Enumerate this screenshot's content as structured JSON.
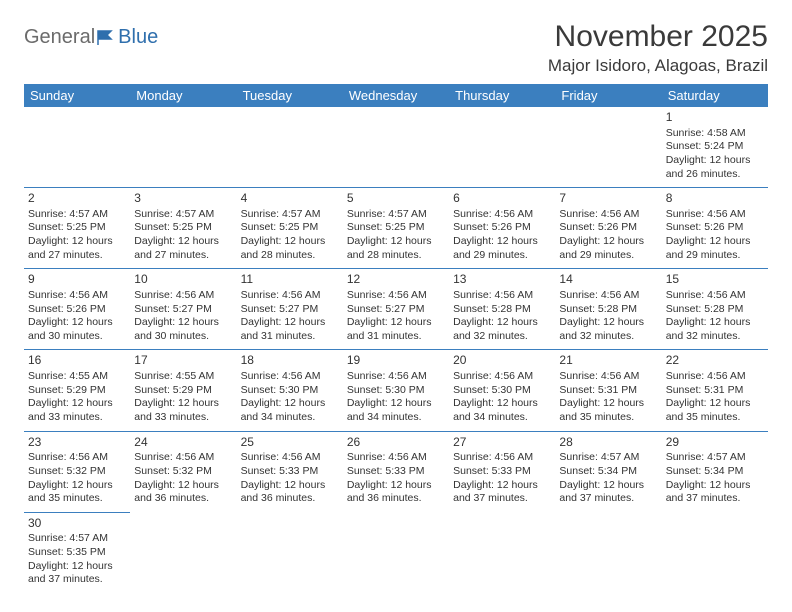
{
  "logo": {
    "text1": "General",
    "text2": "Blue"
  },
  "title": "November 2025",
  "location": "Major Isidoro, Alagoas, Brazil",
  "weekdays": [
    "Sunday",
    "Monday",
    "Tuesday",
    "Wednesday",
    "Thursday",
    "Friday",
    "Saturday"
  ],
  "colors": {
    "header_bg": "#3b7fbf",
    "header_text": "#ffffff",
    "cell_border": "#3b7fbf",
    "text": "#333333",
    "logo_general": "#6b6b6b",
    "logo_blue": "#2f6fad"
  },
  "weeks": [
    [
      null,
      null,
      null,
      null,
      null,
      null,
      {
        "day": "1",
        "sunrise": "Sunrise: 4:58 AM",
        "sunset": "Sunset: 5:24 PM",
        "daylight1": "Daylight: 12 hours",
        "daylight2": "and 26 minutes."
      }
    ],
    [
      {
        "day": "2",
        "sunrise": "Sunrise: 4:57 AM",
        "sunset": "Sunset: 5:25 PM",
        "daylight1": "Daylight: 12 hours",
        "daylight2": "and 27 minutes."
      },
      {
        "day": "3",
        "sunrise": "Sunrise: 4:57 AM",
        "sunset": "Sunset: 5:25 PM",
        "daylight1": "Daylight: 12 hours",
        "daylight2": "and 27 minutes."
      },
      {
        "day": "4",
        "sunrise": "Sunrise: 4:57 AM",
        "sunset": "Sunset: 5:25 PM",
        "daylight1": "Daylight: 12 hours",
        "daylight2": "and 28 minutes."
      },
      {
        "day": "5",
        "sunrise": "Sunrise: 4:57 AM",
        "sunset": "Sunset: 5:25 PM",
        "daylight1": "Daylight: 12 hours",
        "daylight2": "and 28 minutes."
      },
      {
        "day": "6",
        "sunrise": "Sunrise: 4:56 AM",
        "sunset": "Sunset: 5:26 PM",
        "daylight1": "Daylight: 12 hours",
        "daylight2": "and 29 minutes."
      },
      {
        "day": "7",
        "sunrise": "Sunrise: 4:56 AM",
        "sunset": "Sunset: 5:26 PM",
        "daylight1": "Daylight: 12 hours",
        "daylight2": "and 29 minutes."
      },
      {
        "day": "8",
        "sunrise": "Sunrise: 4:56 AM",
        "sunset": "Sunset: 5:26 PM",
        "daylight1": "Daylight: 12 hours",
        "daylight2": "and 29 minutes."
      }
    ],
    [
      {
        "day": "9",
        "sunrise": "Sunrise: 4:56 AM",
        "sunset": "Sunset: 5:26 PM",
        "daylight1": "Daylight: 12 hours",
        "daylight2": "and 30 minutes."
      },
      {
        "day": "10",
        "sunrise": "Sunrise: 4:56 AM",
        "sunset": "Sunset: 5:27 PM",
        "daylight1": "Daylight: 12 hours",
        "daylight2": "and 30 minutes."
      },
      {
        "day": "11",
        "sunrise": "Sunrise: 4:56 AM",
        "sunset": "Sunset: 5:27 PM",
        "daylight1": "Daylight: 12 hours",
        "daylight2": "and 31 minutes."
      },
      {
        "day": "12",
        "sunrise": "Sunrise: 4:56 AM",
        "sunset": "Sunset: 5:27 PM",
        "daylight1": "Daylight: 12 hours",
        "daylight2": "and 31 minutes."
      },
      {
        "day": "13",
        "sunrise": "Sunrise: 4:56 AM",
        "sunset": "Sunset: 5:28 PM",
        "daylight1": "Daylight: 12 hours",
        "daylight2": "and 32 minutes."
      },
      {
        "day": "14",
        "sunrise": "Sunrise: 4:56 AM",
        "sunset": "Sunset: 5:28 PM",
        "daylight1": "Daylight: 12 hours",
        "daylight2": "and 32 minutes."
      },
      {
        "day": "15",
        "sunrise": "Sunrise: 4:56 AM",
        "sunset": "Sunset: 5:28 PM",
        "daylight1": "Daylight: 12 hours",
        "daylight2": "and 32 minutes."
      }
    ],
    [
      {
        "day": "16",
        "sunrise": "Sunrise: 4:55 AM",
        "sunset": "Sunset: 5:29 PM",
        "daylight1": "Daylight: 12 hours",
        "daylight2": "and 33 minutes."
      },
      {
        "day": "17",
        "sunrise": "Sunrise: 4:55 AM",
        "sunset": "Sunset: 5:29 PM",
        "daylight1": "Daylight: 12 hours",
        "daylight2": "and 33 minutes."
      },
      {
        "day": "18",
        "sunrise": "Sunrise: 4:56 AM",
        "sunset": "Sunset: 5:30 PM",
        "daylight1": "Daylight: 12 hours",
        "daylight2": "and 34 minutes."
      },
      {
        "day": "19",
        "sunrise": "Sunrise: 4:56 AM",
        "sunset": "Sunset: 5:30 PM",
        "daylight1": "Daylight: 12 hours",
        "daylight2": "and 34 minutes."
      },
      {
        "day": "20",
        "sunrise": "Sunrise: 4:56 AM",
        "sunset": "Sunset: 5:30 PM",
        "daylight1": "Daylight: 12 hours",
        "daylight2": "and 34 minutes."
      },
      {
        "day": "21",
        "sunrise": "Sunrise: 4:56 AM",
        "sunset": "Sunset: 5:31 PM",
        "daylight1": "Daylight: 12 hours",
        "daylight2": "and 35 minutes."
      },
      {
        "day": "22",
        "sunrise": "Sunrise: 4:56 AM",
        "sunset": "Sunset: 5:31 PM",
        "daylight1": "Daylight: 12 hours",
        "daylight2": "and 35 minutes."
      }
    ],
    [
      {
        "day": "23",
        "sunrise": "Sunrise: 4:56 AM",
        "sunset": "Sunset: 5:32 PM",
        "daylight1": "Daylight: 12 hours",
        "daylight2": "and 35 minutes."
      },
      {
        "day": "24",
        "sunrise": "Sunrise: 4:56 AM",
        "sunset": "Sunset: 5:32 PM",
        "daylight1": "Daylight: 12 hours",
        "daylight2": "and 36 minutes."
      },
      {
        "day": "25",
        "sunrise": "Sunrise: 4:56 AM",
        "sunset": "Sunset: 5:33 PM",
        "daylight1": "Daylight: 12 hours",
        "daylight2": "and 36 minutes."
      },
      {
        "day": "26",
        "sunrise": "Sunrise: 4:56 AM",
        "sunset": "Sunset: 5:33 PM",
        "daylight1": "Daylight: 12 hours",
        "daylight2": "and 36 minutes."
      },
      {
        "day": "27",
        "sunrise": "Sunrise: 4:56 AM",
        "sunset": "Sunset: 5:33 PM",
        "daylight1": "Daylight: 12 hours",
        "daylight2": "and 37 minutes."
      },
      {
        "day": "28",
        "sunrise": "Sunrise: 4:57 AM",
        "sunset": "Sunset: 5:34 PM",
        "daylight1": "Daylight: 12 hours",
        "daylight2": "and 37 minutes."
      },
      {
        "day": "29",
        "sunrise": "Sunrise: 4:57 AM",
        "sunset": "Sunset: 5:34 PM",
        "daylight1": "Daylight: 12 hours",
        "daylight2": "and 37 minutes."
      }
    ],
    [
      {
        "day": "30",
        "sunrise": "Sunrise: 4:57 AM",
        "sunset": "Sunset: 5:35 PM",
        "daylight1": "Daylight: 12 hours",
        "daylight2": "and 37 minutes."
      },
      null,
      null,
      null,
      null,
      null,
      null
    ]
  ]
}
